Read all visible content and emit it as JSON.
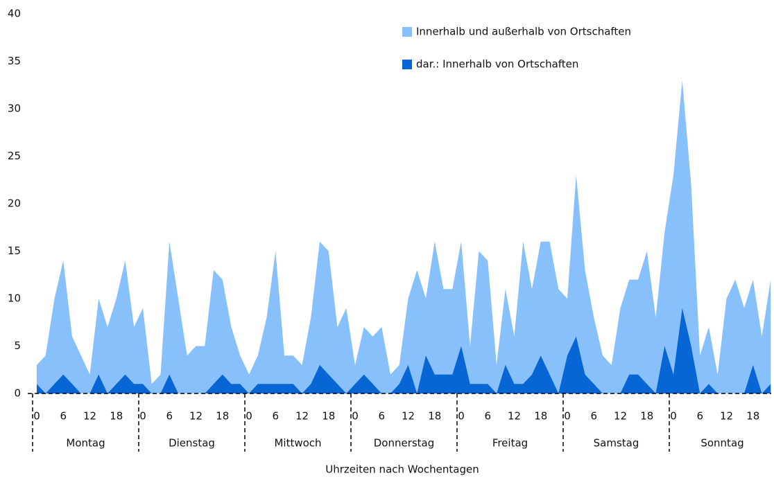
{
  "chart_data": {
    "type": "area",
    "x_label": "Uhrzeiten nach Wochentagen",
    "groups": [
      "Montag",
      "Dienstag",
      "Mittwoch",
      "Donnerstag",
      "Freitag",
      "Samstag",
      "Sonntag"
    ],
    "categories": [
      "0",
      null,
      null,
      "6",
      null,
      null,
      "12",
      null,
      null,
      "18",
      null,
      null,
      "0",
      null,
      null,
      "6",
      null,
      null,
      "12",
      null,
      null,
      "18",
      null,
      null,
      "0",
      null,
      null,
      "6",
      null,
      null,
      "12",
      null,
      null,
      "18",
      null,
      null,
      "0",
      null,
      null,
      "6",
      null,
      null,
      "12",
      null,
      null,
      "18",
      null,
      null,
      "0",
      null,
      null,
      "6",
      null,
      null,
      "12",
      null,
      null,
      "18",
      null,
      null,
      "0",
      null,
      null,
      "6",
      null,
      null,
      "12",
      null,
      null,
      "18",
      null,
      null,
      "0",
      null,
      null,
      "6",
      null,
      null,
      "12",
      null,
      null,
      "18",
      null,
      null
    ],
    "series": [
      {
        "name": "Innerhalb und außerhalb von Ortschaften",
        "color": "#88c0fb",
        "values": [
          3,
          4,
          10,
          14,
          6,
          4,
          2,
          10,
          7,
          10,
          14,
          7,
          9,
          1,
          2,
          16,
          10,
          4,
          5,
          5,
          13,
          12,
          7,
          4,
          2,
          4,
          8,
          15,
          4,
          4,
          3,
          8,
          16,
          15,
          7,
          9,
          3,
          7,
          6,
          7,
          2,
          3,
          10,
          13,
          10,
          16,
          11,
          11,
          16,
          5,
          15,
          14,
          3,
          11,
          6,
          16,
          11,
          16,
          16,
          11,
          10,
          23,
          13,
          8,
          4,
          3,
          9,
          12,
          12,
          15,
          8,
          17,
          23,
          33,
          22,
          4,
          7,
          2,
          10,
          12,
          9,
          12,
          6,
          12
        ]
      },
      {
        "name": "dar.: Innerhalb von Ortschaften",
        "color": "#0866d4",
        "values": [
          1,
          0,
          1,
          2,
          1,
          0,
          0,
          2,
          0,
          1,
          2,
          1,
          1,
          0,
          0,
          2,
          0,
          0,
          0,
          0,
          1,
          2,
          1,
          1,
          0,
          1,
          1,
          1,
          1,
          1,
          0,
          1,
          3,
          2,
          1,
          0,
          1,
          2,
          1,
          0,
          0,
          1,
          3,
          0,
          4,
          2,
          2,
          2,
          5,
          1,
          1,
          1,
          0,
          3,
          1,
          1,
          2,
          4,
          2,
          0,
          4,
          6,
          2,
          1,
          0,
          0,
          0,
          2,
          2,
          1,
          0,
          5,
          2,
          9,
          5,
          0,
          1,
          0,
          0,
          0,
          0,
          3,
          0,
          1
        ]
      }
    ],
    "ylim": [
      0,
      40
    ],
    "yticks": [
      0,
      5,
      10,
      15,
      20,
      25,
      30,
      35,
      40
    ],
    "grid": false,
    "legend": "top-right"
  }
}
